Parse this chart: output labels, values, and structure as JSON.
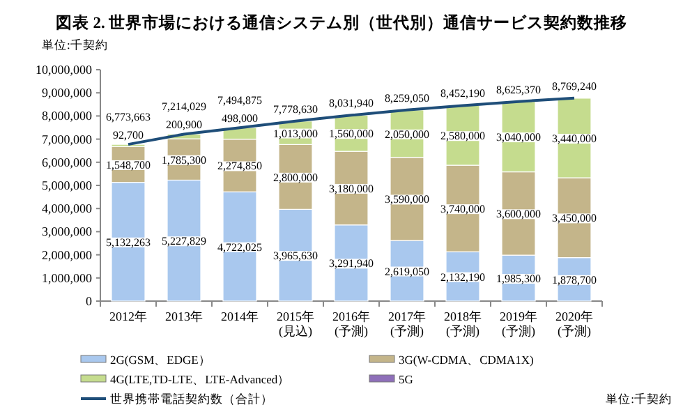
{
  "chart_data": {
    "type": "bar",
    "stacked": true,
    "title": "図表 2. 世界市場における通信システム別（世代別）通信サービス契約数推移",
    "ylabel": "単位:千契約",
    "categories": [
      "2012年",
      "2013年",
      "2014年",
      "2015年\n(見込)",
      "2016年\n(予測)",
      "2017年\n(予測)",
      "2018年\n(予測)",
      "2019年\n(予測)",
      "2020年\n(予測)"
    ],
    "ylim": [
      0,
      10000000
    ],
    "yticks": [
      {
        "value": 0,
        "label": "0"
      },
      {
        "value": 1000000,
        "label": "1,000,000"
      },
      {
        "value": 2000000,
        "label": "2,000,000"
      },
      {
        "value": 3000000,
        "label": "3,000,000"
      },
      {
        "value": 4000000,
        "label": "4,000,000"
      },
      {
        "value": 5000000,
        "label": "5,000,000"
      },
      {
        "value": 6000000,
        "label": "6,000,000"
      },
      {
        "value": 7000000,
        "label": "7,000,000"
      },
      {
        "value": 8000000,
        "label": "8,000,000"
      },
      {
        "value": 9000000,
        "label": "9,000,000"
      },
      {
        "value": 10000000,
        "label": "10,000,000"
      }
    ],
    "series": [
      {
        "name": "2G(GSM、EDGE）",
        "color": "#a9c8ee",
        "values": [
          5132263,
          5227829,
          4722025,
          3965630,
          3291940,
          2619050,
          2132190,
          1985300,
          1878700
        ],
        "value_labels": [
          "5,132,263",
          "5,227,829",
          "4,722,025",
          "3,965,630",
          "3,291,940",
          "2,619,050",
          "2,132,190",
          "1,985,300",
          "1,878,700"
        ]
      },
      {
        "name": "3G(W-CDMA、CDMA1X)",
        "color": "#c4b58a",
        "values": [
          1548700,
          1785300,
          2274850,
          2800000,
          3180000,
          3590000,
          3740000,
          3600000,
          3450000
        ],
        "value_labels": [
          "1,548,700",
          "1,785,300",
          "2,274,850",
          "2,800,000",
          "3,180,000",
          "3,590,000",
          "3,740,000",
          "3,600,000",
          "3,450,000"
        ]
      },
      {
        "name": "4G(LTE,TD-LTE、LTE-Advanced）",
        "color": "#c5dc8e",
        "values": [
          92700,
          200900,
          498000,
          1013000,
          1560000,
          2050000,
          2580000,
          3040000,
          3440000
        ],
        "value_labels": [
          "92,700",
          "200,900",
          "498,000",
          "1,013,000",
          "1,560,000",
          "2,050,000",
          "2,580,000",
          "3,040,000",
          "3,440,000"
        ]
      },
      {
        "name": "5G",
        "color": "#8e6fb9",
        "values": [
          null,
          null,
          null,
          null,
          null,
          null,
          null,
          null,
          null
        ]
      },
      {
        "name": "世界携帯電話契約数（合計）",
        "type": "line",
        "color": "#1f4e79",
        "values": [
          6773663,
          7214029,
          7494875,
          7778630,
          8031940,
          8259050,
          8452190,
          8625370,
          8769240
        ],
        "value_labels": [
          "6,773,663",
          "7,214,029",
          "7,494,875",
          "7,778,630",
          "8,031,940",
          "8,259,050",
          "8,452,190",
          "8,625,370",
          "8,769,240"
        ]
      }
    ],
    "legend": "bottom",
    "annotations": [
      "単位:千契約"
    ]
  }
}
